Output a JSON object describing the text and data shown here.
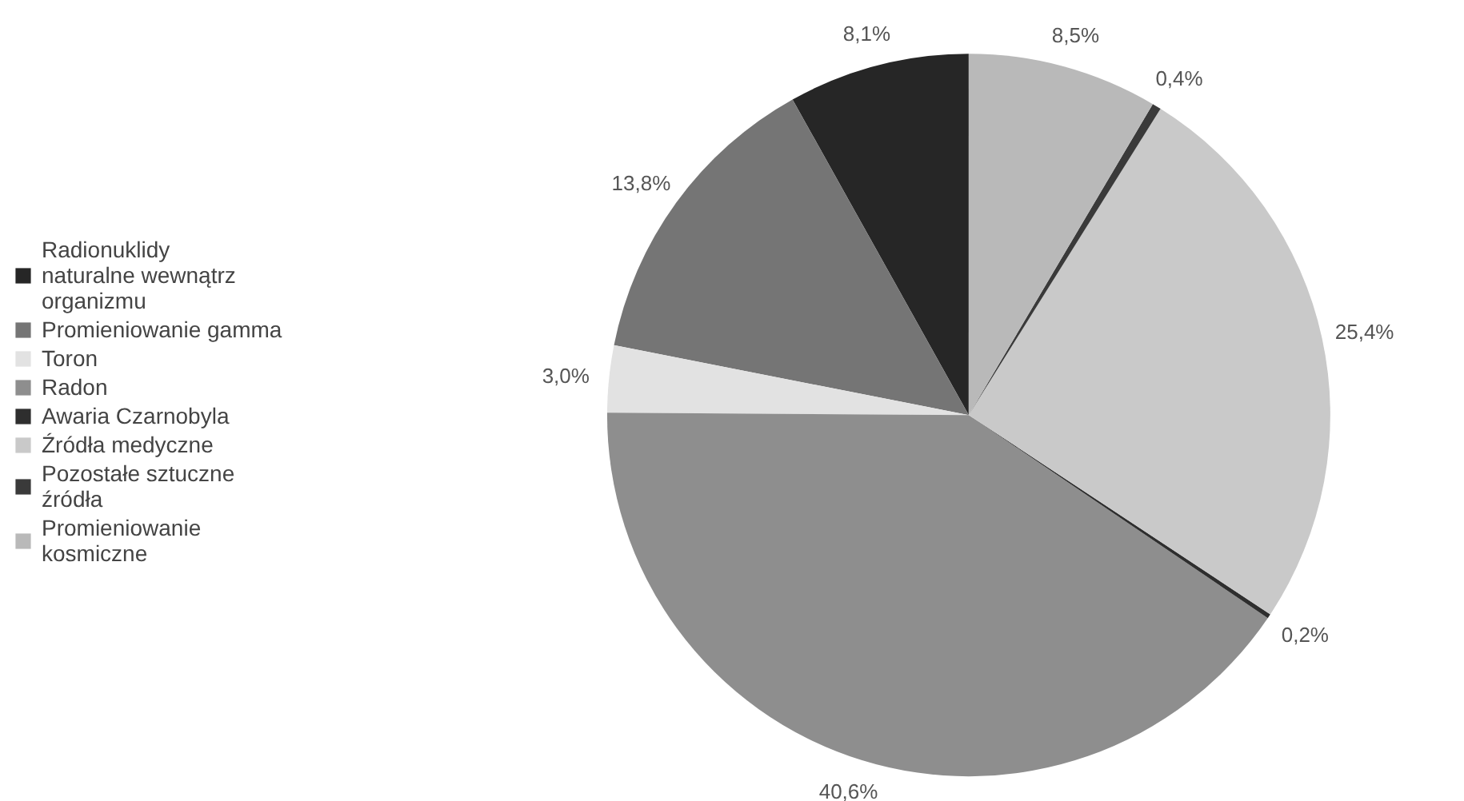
{
  "chart_data": {
    "type": "pie",
    "categories": [
      "Radionuklidy naturalne wewnątrz organizmu",
      "Promieniowanie gamma",
      "Toron",
      "Radon",
      "Awaria Czarnobyla",
      "Źródła medyczne",
      "Pozostałe sztuczne źródła",
      "Promieniowanie kosmiczne"
    ],
    "values": [
      8.1,
      13.8,
      3.0,
      40.6,
      0.2,
      25.4,
      0.4,
      8.5
    ],
    "colors": [
      "#262626",
      "#757575",
      "#e2e2e2",
      "#8e8e8e",
      "#2e2e2e",
      "#c9c9c9",
      "#3a3a3a",
      "#b9b9b9"
    ],
    "value_labels": [
      "8,1%",
      "13,8%",
      "3,0%",
      "40,6%",
      "0,2%",
      "25,4%",
      "0,4%",
      "8,5%"
    ],
    "legend": "left"
  }
}
